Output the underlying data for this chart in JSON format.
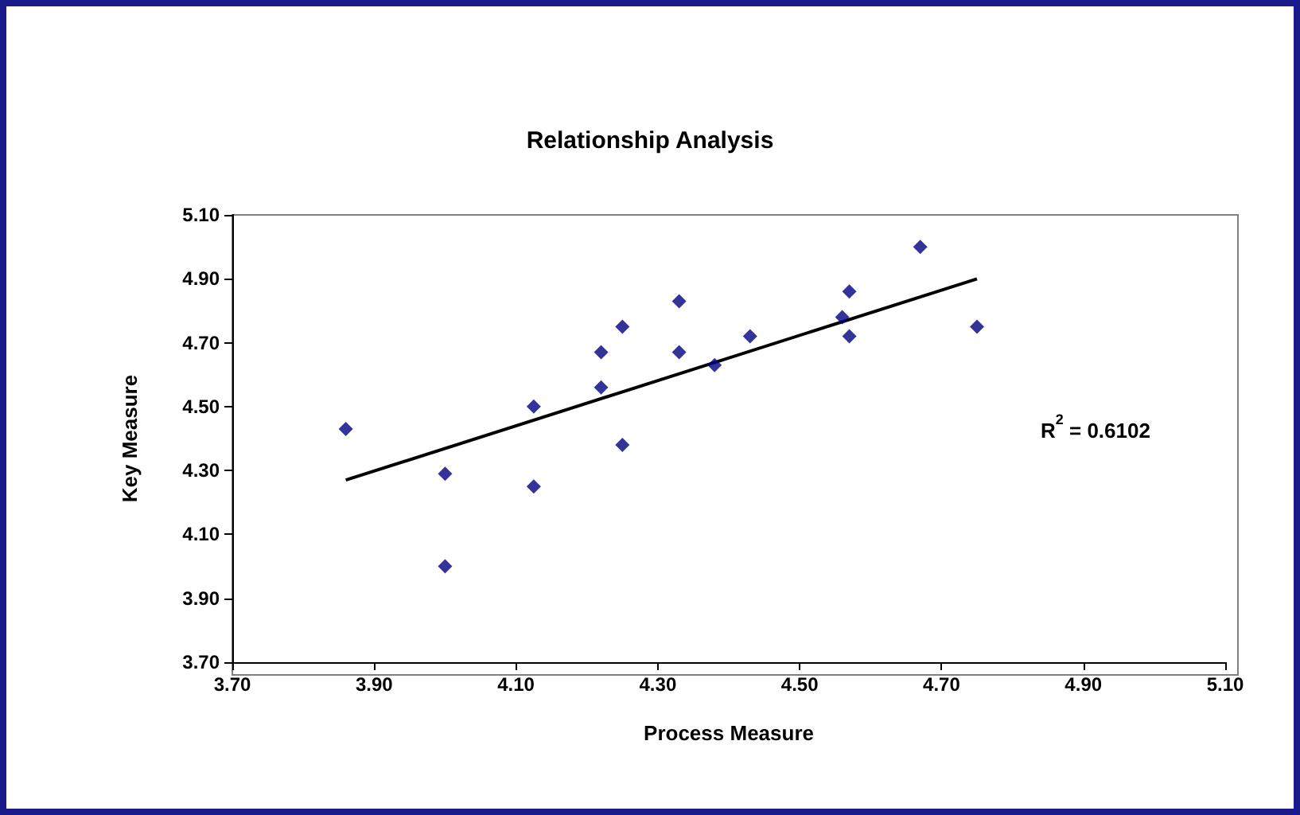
{
  "chart_data": {
    "type": "scatter",
    "title": "Relationship Analysis",
    "xlabel": "Process Measure",
    "ylabel": "Key Measure",
    "xlim": [
      3.7,
      5.1
    ],
    "xticks": [
      {
        "value": 3.7,
        "label": "3.70"
      },
      {
        "value": 3.9,
        "label": "3.90"
      },
      {
        "value": 4.1,
        "label": "4.10"
      },
      {
        "value": 4.3,
        "label": "4.30"
      },
      {
        "value": 4.5,
        "label": "4.50"
      },
      {
        "value": 4.7,
        "label": "4.70"
      },
      {
        "value": 4.9,
        "label": "4.90"
      },
      {
        "value": 5.1,
        "label": "5.10"
      }
    ],
    "ylim": [
      3.7,
      5.1
    ],
    "yticks": [
      {
        "value": 3.7,
        "label": "3.70"
      },
      {
        "value": 3.9,
        "label": "3.90"
      },
      {
        "value": 4.1,
        "label": "4.10"
      },
      {
        "value": 4.3,
        "label": "4.30"
      },
      {
        "value": 4.5,
        "label": "4.50"
      },
      {
        "value": 4.7,
        "label": "4.70"
      },
      {
        "value": 4.9,
        "label": "4.90"
      },
      {
        "value": 5.1,
        "label": "5.10"
      }
    ],
    "grid": false,
    "marker": "diamond",
    "series": [
      {
        "color": "#000080",
        "x": [
          3.86,
          4.0,
          4.0,
          4.125,
          4.125,
          4.22,
          4.22,
          4.25,
          4.25,
          4.33,
          4.33,
          4.38,
          4.43,
          4.56,
          4.57,
          4.57,
          4.67,
          4.75
        ],
        "values": [
          4.43,
          4.29,
          4.0,
          4.5,
          4.25,
          4.56,
          4.67,
          4.75,
          4.38,
          4.83,
          4.67,
          4.63,
          4.72,
          4.78,
          4.86,
          4.72,
          5.0,
          4.75
        ]
      },
      {
        "type": "line",
        "color": "#000000",
        "marker": "none",
        "line_style": "solid",
        "x": [
          3.86,
          4.75
        ],
        "values": [
          4.27,
          4.9
        ]
      }
    ],
    "annotations": [
      "R$^{2}$ = 0.6102"
    ]
  }
}
